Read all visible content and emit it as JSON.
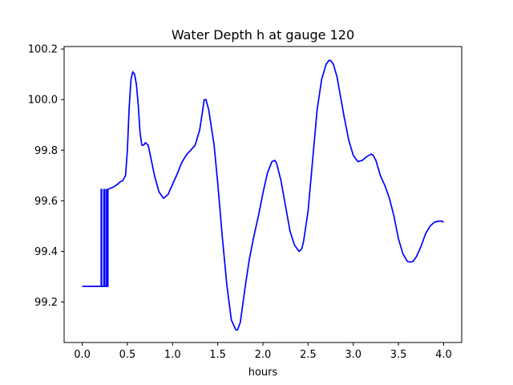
{
  "chart_data": {
    "type": "line",
    "title": "Water Depth h at gauge 120",
    "xlabel": "hours",
    "ylabel": "",
    "xlim": [
      -0.2,
      4.2
    ],
    "ylim": [
      99.04,
      100.21
    ],
    "xticks": [
      0.0,
      0.5,
      1.0,
      1.5,
      2.0,
      2.5,
      3.0,
      3.5,
      4.0
    ],
    "xtick_labels": [
      "0.0",
      "0.5",
      "1.0",
      "1.5",
      "2.0",
      "2.5",
      "3.0",
      "3.5",
      "4.0"
    ],
    "yticks": [
      99.2,
      99.4,
      99.6,
      99.8,
      100.0,
      100.2
    ],
    "ytick_labels": [
      "99.2",
      "99.4",
      "99.6",
      "99.8",
      "100.0",
      "100.2"
    ],
    "grid": false,
    "line_color": "#0000ff",
    "series": [
      {
        "x": [
          0.0,
          0.21,
          0.21,
          0.215,
          0.215,
          0.24,
          0.24,
          0.25,
          0.25,
          0.27,
          0.27,
          0.275,
          0.275,
          0.285,
          0.285,
          0.3,
          0.33,
          0.36,
          0.39,
          0.42,
          0.45,
          0.48,
          0.5,
          0.52,
          0.54,
          0.56,
          0.58,
          0.6,
          0.62,
          0.64,
          0.66,
          0.68,
          0.7,
          0.73,
          0.76,
          0.8,
          0.85,
          0.9,
          0.95,
          1.0,
          1.05,
          1.1,
          1.15,
          1.2,
          1.25,
          1.3,
          1.33,
          1.35,
          1.37,
          1.4,
          1.43,
          1.46,
          1.5,
          1.55,
          1.6,
          1.65,
          1.7,
          1.72,
          1.75,
          1.8,
          1.85,
          1.9,
          1.95,
          2.0,
          2.05,
          2.1,
          2.13,
          2.15,
          2.2,
          2.25,
          2.3,
          2.35,
          2.4,
          2.43,
          2.45,
          2.5,
          2.55,
          2.6,
          2.65,
          2.7,
          2.73,
          2.75,
          2.78,
          2.82,
          2.85,
          2.9,
          2.95,
          3.0,
          3.05,
          3.1,
          3.15,
          3.2,
          3.22,
          3.25,
          3.3,
          3.35,
          3.4,
          3.45,
          3.5,
          3.55,
          3.6,
          3.63,
          3.66,
          3.7,
          3.75,
          3.8,
          3.85,
          3.9,
          3.95,
          3.98,
          4.0
        ],
        "y": [
          99.262,
          99.262,
          99.645,
          99.645,
          99.262,
          99.262,
          99.645,
          99.645,
          99.262,
          99.262,
          99.645,
          99.645,
          99.262,
          99.262,
          99.645,
          99.648,
          99.652,
          99.658,
          99.665,
          99.675,
          99.68,
          99.7,
          99.8,
          99.97,
          100.08,
          100.11,
          100.1,
          100.06,
          99.98,
          99.87,
          99.82,
          99.82,
          99.83,
          99.82,
          99.77,
          99.7,
          99.635,
          99.61,
          99.625,
          99.665,
          99.705,
          99.75,
          99.78,
          99.8,
          99.82,
          99.88,
          99.95,
          100.0,
          100.0,
          99.96,
          99.89,
          99.82,
          99.67,
          99.46,
          99.27,
          99.13,
          99.09,
          99.09,
          99.12,
          99.25,
          99.37,
          99.46,
          99.54,
          99.63,
          99.71,
          99.755,
          99.76,
          99.75,
          99.68,
          99.58,
          99.48,
          99.425,
          99.4,
          99.41,
          99.44,
          99.56,
          99.76,
          99.96,
          100.08,
          100.14,
          100.155,
          100.155,
          100.14,
          100.09,
          100.03,
          99.93,
          99.84,
          99.78,
          99.755,
          99.76,
          99.775,
          99.785,
          99.78,
          99.76,
          99.7,
          99.66,
          99.61,
          99.54,
          99.45,
          99.39,
          99.36,
          99.358,
          99.36,
          99.38,
          99.42,
          99.47,
          99.5,
          99.516,
          99.52,
          99.52,
          99.515
        ]
      }
    ]
  }
}
